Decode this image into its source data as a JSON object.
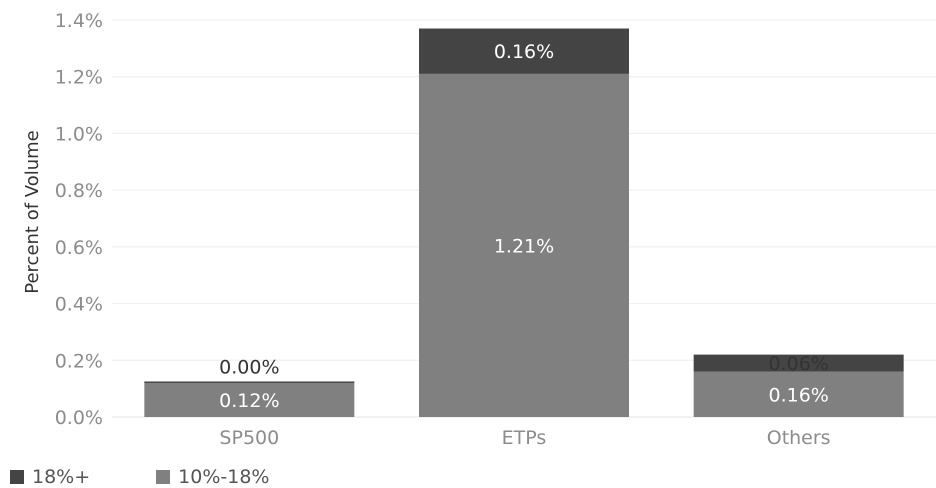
{
  "chart_data": {
    "type": "bar",
    "stacked": true,
    "categories": [
      "SP500",
      "ETPs",
      "Others"
    ],
    "series": [
      {
        "name": "10%-18%",
        "values": [
          0.12,
          1.21,
          0.16
        ],
        "labels": [
          "0.12%",
          "1.21%",
          "0.16%"
        ],
        "color": "#808080"
      },
      {
        "name": "18%+",
        "values": [
          0.0,
          0.16,
          0.06
        ],
        "labels": [
          "0.00%",
          "0.16%",
          "0.06%"
        ],
        "color": "#444444"
      }
    ],
    "ylabel": "Percent of Volume",
    "xlabel": "",
    "ylim": [
      0,
      1.4
    ],
    "yticks": [
      0.0,
      0.2,
      0.4,
      0.6,
      0.8,
      1.0,
      1.2,
      1.4
    ],
    "ytick_labels": [
      "0.0%",
      "0.2%",
      "0.4%",
      "0.6%",
      "0.8%",
      "1.0%",
      "1.2%",
      "1.4%"
    ],
    "grid": true,
    "legend_position": "bottom-left",
    "legend_order": [
      "18%+",
      "10%-18%"
    ]
  }
}
